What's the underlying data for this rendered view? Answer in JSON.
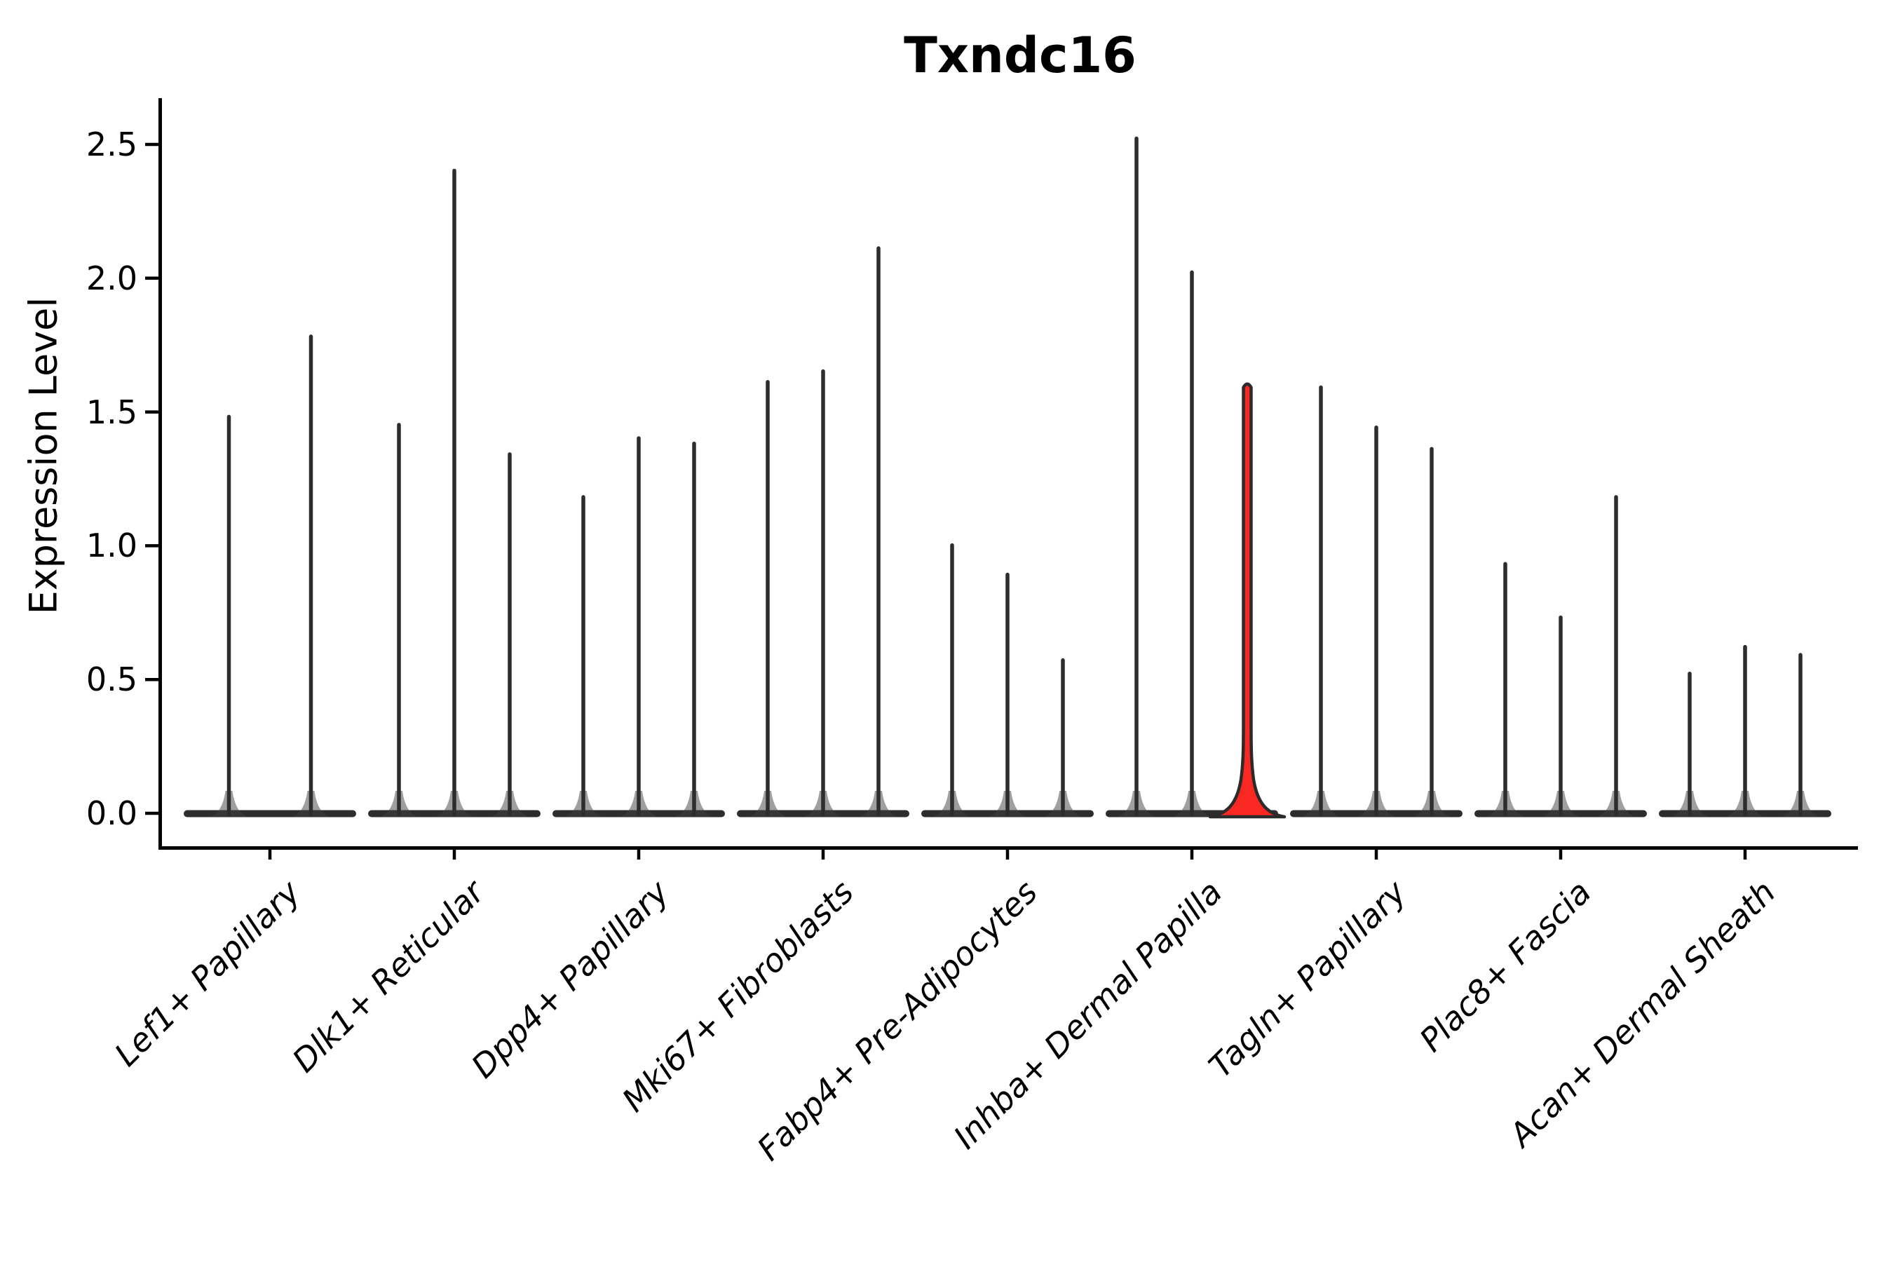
{
  "title": "Txndc16",
  "y_axis_label": "Expression Level",
  "colors": {
    "violin_outline": "#2d2d2d",
    "highlight_fill": "#fa2822",
    "axis": "#000000",
    "background": "#ffffff"
  },
  "chart_data": {
    "type": "violin",
    "title": "Txndc16",
    "xlabel": "",
    "ylabel": "Expression Level",
    "ylim": [
      0,
      2.65
    ],
    "yticks": [
      0.0,
      0.5,
      1.0,
      1.5,
      2.0,
      2.5
    ],
    "ytick_labels": [
      "0.0",
      "0.5",
      "1.0",
      "1.5",
      "2.0",
      "2.5"
    ],
    "grid": false,
    "legend": "none",
    "note": "Needle-thin violins with flat bases at 0; values are violin max expression per sub-violin; third violin of Inhba+ Dermal Papilla is highlighted red",
    "categories": [
      "Lef1+ Papillary",
      "Dlk1+ Reticular",
      "Dpp4+ Papillary",
      "Mki67+ Fibroblasts",
      "Fabp4+ Pre-Adipocytes",
      "Inhba+ Dermal Papilla",
      "Tagln+ Papillary",
      "Plac8+ Fascia",
      "Acan+ Dermal Sheath"
    ],
    "groups": [
      {
        "category": "Lef1+ Papillary",
        "violins": [
          {
            "max": 1.49
          },
          {
            "max": 1.79
          }
        ]
      },
      {
        "category": "Dlk1+ Reticular",
        "violins": [
          {
            "max": 1.46
          },
          {
            "max": 2.41
          },
          {
            "max": 1.35
          }
        ]
      },
      {
        "category": "Dpp4+ Papillary",
        "violins": [
          {
            "max": 1.19
          },
          {
            "max": 1.41
          },
          {
            "max": 1.39
          }
        ]
      },
      {
        "category": "Mki67+ Fibroblasts",
        "violins": [
          {
            "max": 1.62
          },
          {
            "max": 1.66
          },
          {
            "max": 2.12
          }
        ]
      },
      {
        "category": "Fabp4+ Pre-Adipocytes",
        "violins": [
          {
            "max": 1.01
          },
          {
            "max": 0.9
          },
          {
            "max": 0.58
          }
        ]
      },
      {
        "category": "Inhba+ Dermal Papilla",
        "violins": [
          {
            "max": 2.53
          },
          {
            "max": 2.03
          },
          {
            "max": 1.61,
            "highlight": true
          }
        ]
      },
      {
        "category": "Tagln+ Papillary",
        "violins": [
          {
            "max": 1.6
          },
          {
            "max": 1.45
          },
          {
            "max": 1.37
          }
        ]
      },
      {
        "category": "Plac8+ Fascia",
        "violins": [
          {
            "max": 0.94
          },
          {
            "max": 0.74
          },
          {
            "max": 1.19
          }
        ]
      },
      {
        "category": "Acan+ Dermal Sheath",
        "violins": [
          {
            "max": 0.53
          },
          {
            "max": 0.63
          },
          {
            "max": 0.6
          }
        ]
      }
    ]
  }
}
